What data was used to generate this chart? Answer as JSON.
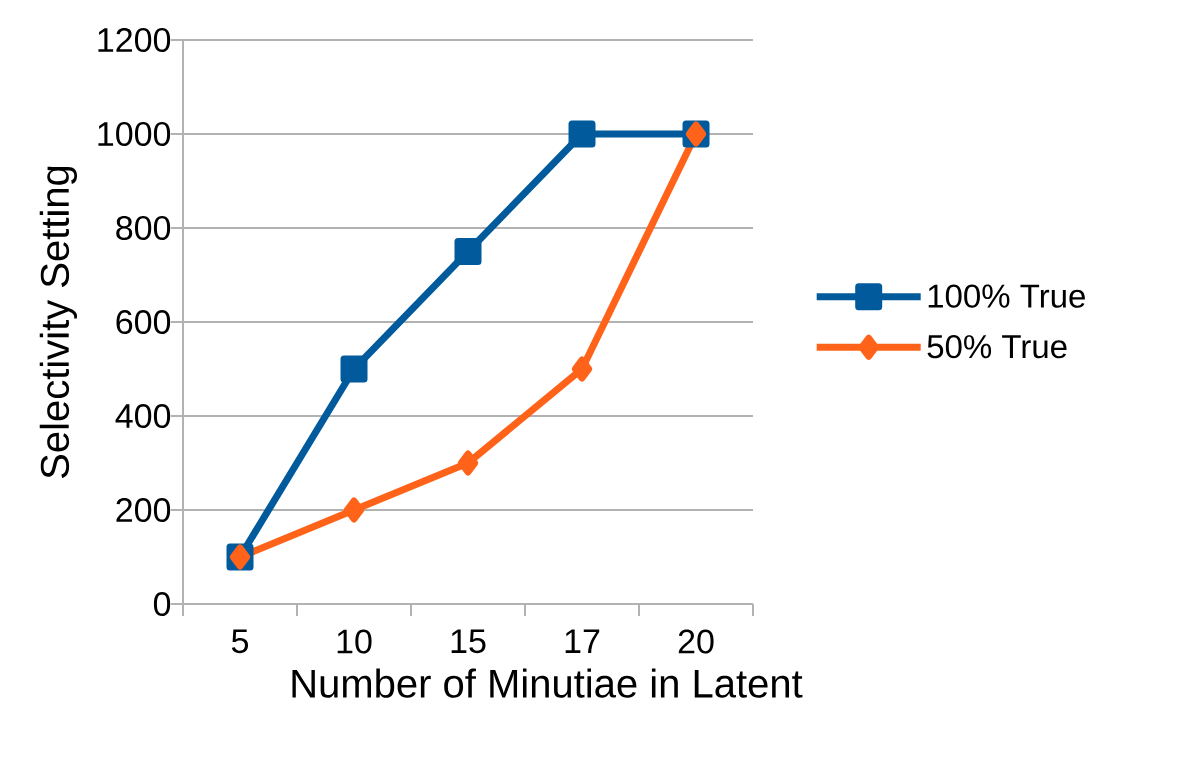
{
  "chart_data": {
    "type": "line",
    "xlabel": "Number of Minutiae in Latent",
    "ylabel": "Selectivity Setting",
    "categories": [
      "5",
      "10",
      "15",
      "17",
      "20"
    ],
    "ylim": [
      0,
      1200
    ],
    "yticks": [
      0,
      200,
      400,
      600,
      800,
      1000,
      1200
    ],
    "grid": "y",
    "legend": "right",
    "line_style": "solid",
    "series": [
      {
        "name": "100% True",
        "color": "#005a9c",
        "marker": "square",
        "values": [
          100,
          500,
          750,
          1000,
          1000
        ]
      },
      {
        "name": "50% True",
        "color": "#ff6319",
        "marker": "diamond",
        "values": [
          100,
          200,
          300,
          500,
          1000
        ]
      }
    ]
  }
}
